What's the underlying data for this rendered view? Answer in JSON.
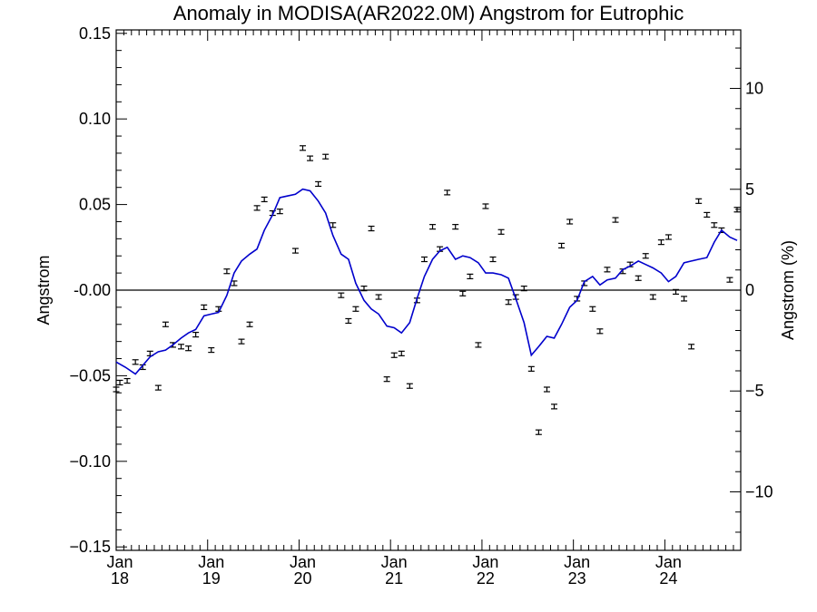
{
  "chart_data": {
    "type": "scatter",
    "title": "Anomaly in MODISA(AR2022.0M) Angstrom for Eutrophic",
    "ylabel": "Angstrom",
    "y2label": "Angstrom (%)",
    "xlabel": "",
    "ylim": [
      -0.152,
      0.152
    ],
    "y2lim": [
      -12.9,
      12.9
    ],
    "xlim": [
      2018.0,
      2024.83
    ],
    "yticks": [
      0.15,
      0.1,
      0.05,
      0.0,
      -0.05,
      -0.1,
      -0.15
    ],
    "ytick_labels": [
      "0.15",
      "0.10",
      "0.05",
      "-0.00",
      "−0.05",
      "−0.10",
      "−0.15"
    ],
    "y2ticks": [
      10,
      5,
      0,
      -5,
      -10
    ],
    "y2tick_labels": [
      "10",
      "5",
      "0",
      "−5",
      "−10"
    ],
    "xticks": [
      {
        "x": 2018.0,
        "line1": "Jan",
        "line2": "18"
      },
      {
        "x": 2019.0,
        "line1": "Jan",
        "line2": "19"
      },
      {
        "x": 2020.0,
        "line1": "Jan",
        "line2": "20"
      },
      {
        "x": 2021.0,
        "line1": "Jan",
        "line2": "21"
      },
      {
        "x": 2022.0,
        "line1": "Jan",
        "line2": "22"
      },
      {
        "x": 2023.0,
        "line1": "Jan",
        "line2": "23"
      },
      {
        "x": 2024.0,
        "line1": "Jan",
        "line2": "24"
      }
    ],
    "zero_line": 0,
    "grid": false,
    "colors": {
      "points": "#000000",
      "running_mean": "#0000cc",
      "zero_line": "#000000"
    },
    "series": [
      {
        "kind": "points_with_errorbars",
        "error": 0.0008,
        "points": [
          [
            2018.0,
            -0.058
          ],
          [
            2018.04,
            -0.054
          ],
          [
            2018.12,
            -0.053
          ],
          [
            2018.21,
            -0.042
          ],
          [
            2018.29,
            -0.045
          ],
          [
            2018.37,
            -0.037
          ],
          [
            2018.46,
            -0.057
          ],
          [
            2018.54,
            -0.02
          ],
          [
            2018.62,
            -0.032
          ],
          [
            2018.71,
            -0.033
          ],
          [
            2018.79,
            -0.034
          ],
          [
            2018.87,
            -0.026
          ],
          [
            2018.96,
            -0.01
          ],
          [
            2019.04,
            -0.035
          ],
          [
            2019.12,
            -0.011
          ],
          [
            2019.21,
            0.011
          ],
          [
            2019.29,
            0.004
          ],
          [
            2019.37,
            -0.03
          ],
          [
            2019.46,
            -0.02
          ],
          [
            2019.54,
            0.048
          ],
          [
            2019.62,
            0.053
          ],
          [
            2019.71,
            0.045
          ],
          [
            2019.79,
            0.046
          ],
          [
            2019.96,
            0.023
          ],
          [
            2020.04,
            0.083
          ],
          [
            2020.12,
            0.077
          ],
          [
            2020.21,
            0.062
          ],
          [
            2020.29,
            0.078
          ],
          [
            2020.37,
            0.038
          ],
          [
            2020.46,
            -0.003
          ],
          [
            2020.54,
            -0.018
          ],
          [
            2020.62,
            -0.011
          ],
          [
            2020.71,
            0.001
          ],
          [
            2020.79,
            0.036
          ],
          [
            2020.87,
            -0.004
          ],
          [
            2020.96,
            -0.052
          ],
          [
            2021.04,
            -0.038
          ],
          [
            2021.12,
            -0.037
          ],
          [
            2021.21,
            -0.056
          ],
          [
            2021.29,
            -0.006
          ],
          [
            2021.37,
            0.018
          ],
          [
            2021.46,
            0.037
          ],
          [
            2021.54,
            0.024
          ],
          [
            2021.62,
            0.057
          ],
          [
            2021.71,
            0.037
          ],
          [
            2021.79,
            -0.002
          ],
          [
            2021.87,
            0.008
          ],
          [
            2021.96,
            -0.032
          ],
          [
            2022.04,
            0.049
          ],
          [
            2022.12,
            0.018
          ],
          [
            2022.21,
            0.034
          ],
          [
            2022.29,
            -0.007
          ],
          [
            2022.37,
            -0.004
          ],
          [
            2022.46,
            0.001
          ],
          [
            2022.54,
            -0.046
          ],
          [
            2022.62,
            -0.083
          ],
          [
            2022.71,
            -0.058
          ],
          [
            2022.79,
            -0.068
          ],
          [
            2022.87,
            0.026
          ],
          [
            2022.96,
            0.04
          ],
          [
            2023.04,
            -0.005
          ],
          [
            2023.12,
            0.004
          ],
          [
            2023.21,
            -0.011
          ],
          [
            2023.29,
            -0.024
          ],
          [
            2023.37,
            0.012
          ],
          [
            2023.46,
            0.041
          ],
          [
            2023.54,
            0.011
          ],
          [
            2023.62,
            0.015
          ],
          [
            2023.71,
            0.007
          ],
          [
            2023.79,
            0.02
          ],
          [
            2023.87,
            -0.004
          ],
          [
            2023.96,
            0.028
          ],
          [
            2024.04,
            0.031
          ],
          [
            2024.12,
            -0.001
          ],
          [
            2024.21,
            -0.005
          ],
          [
            2024.29,
            -0.033
          ],
          [
            2024.37,
            0.052
          ],
          [
            2024.46,
            0.044
          ],
          [
            2024.54,
            0.038
          ],
          [
            2024.62,
            0.035
          ],
          [
            2024.71,
            0.006
          ],
          [
            2024.79,
            0.047
          ]
        ]
      },
      {
        "kind": "running_mean_line",
        "points": [
          [
            2018.0,
            -0.042
          ],
          [
            2018.1,
            -0.045
          ],
          [
            2018.21,
            -0.049
          ],
          [
            2018.29,
            -0.044
          ],
          [
            2018.37,
            -0.039
          ],
          [
            2018.46,
            -0.036
          ],
          [
            2018.54,
            -0.035
          ],
          [
            2018.62,
            -0.032
          ],
          [
            2018.71,
            -0.028
          ],
          [
            2018.79,
            -0.025
          ],
          [
            2018.87,
            -0.023
          ],
          [
            2018.96,
            -0.015
          ],
          [
            2019.04,
            -0.014
          ],
          [
            2019.12,
            -0.013
          ],
          [
            2019.21,
            -0.003
          ],
          [
            2019.29,
            0.01
          ],
          [
            2019.37,
            0.017
          ],
          [
            2019.46,
            0.021
          ],
          [
            2019.54,
            0.024
          ],
          [
            2019.62,
            0.035
          ],
          [
            2019.71,
            0.044
          ],
          [
            2019.79,
            0.054
          ],
          [
            2019.87,
            0.055
          ],
          [
            2019.96,
            0.056
          ],
          [
            2020.04,
            0.059
          ],
          [
            2020.12,
            0.058
          ],
          [
            2020.21,
            0.052
          ],
          [
            2020.29,
            0.045
          ],
          [
            2020.37,
            0.032
          ],
          [
            2020.46,
            0.021
          ],
          [
            2020.54,
            0.018
          ],
          [
            2020.62,
            0.004
          ],
          [
            2020.71,
            -0.006
          ],
          [
            2020.79,
            -0.011
          ],
          [
            2020.87,
            -0.014
          ],
          [
            2020.96,
            -0.021
          ],
          [
            2021.04,
            -0.022
          ],
          [
            2021.12,
            -0.025
          ],
          [
            2021.21,
            -0.019
          ],
          [
            2021.29,
            -0.005
          ],
          [
            2021.37,
            0.008
          ],
          [
            2021.46,
            0.018
          ],
          [
            2021.54,
            0.023
          ],
          [
            2021.62,
            0.025
          ],
          [
            2021.71,
            0.018
          ],
          [
            2021.79,
            0.02
          ],
          [
            2021.87,
            0.019
          ],
          [
            2021.96,
            0.016
          ],
          [
            2022.04,
            0.01
          ],
          [
            2022.12,
            0.01
          ],
          [
            2022.21,
            0.009
          ],
          [
            2022.29,
            0.007
          ],
          [
            2022.37,
            -0.005
          ],
          [
            2022.46,
            -0.019
          ],
          [
            2022.54,
            -0.038
          ],
          [
            2022.62,
            -0.033
          ],
          [
            2022.71,
            -0.027
          ],
          [
            2022.79,
            -0.028
          ],
          [
            2022.87,
            -0.02
          ],
          [
            2022.96,
            -0.01
          ],
          [
            2023.04,
            -0.006
          ],
          [
            2023.12,
            0.005
          ],
          [
            2023.21,
            0.008
          ],
          [
            2023.29,
            0.003
          ],
          [
            2023.37,
            0.006
          ],
          [
            2023.46,
            0.007
          ],
          [
            2023.54,
            0.012
          ],
          [
            2023.62,
            0.014
          ],
          [
            2023.71,
            0.017
          ],
          [
            2023.79,
            0.015
          ],
          [
            2023.87,
            0.013
          ],
          [
            2023.96,
            0.01
          ],
          [
            2024.04,
            0.005
          ],
          [
            2024.12,
            0.008
          ],
          [
            2024.21,
            0.016
          ],
          [
            2024.29,
            0.017
          ],
          [
            2024.37,
            0.018
          ],
          [
            2024.46,
            0.019
          ],
          [
            2024.54,
            0.028
          ],
          [
            2024.62,
            0.035
          ],
          [
            2024.71,
            0.031
          ],
          [
            2024.79,
            0.029
          ]
        ]
      }
    ]
  }
}
